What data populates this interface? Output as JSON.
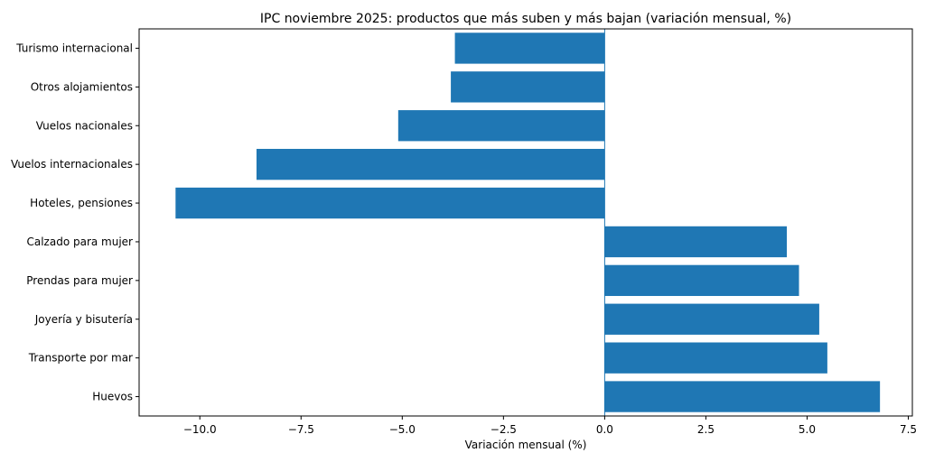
{
  "chart_data": {
    "type": "bar",
    "orientation": "horizontal",
    "title": "IPC noviembre 2025: productos que más suben y más bajan (variación mensual, %)",
    "xlabel": "Variación mensual (%)",
    "ylabel": "",
    "xlim": [
      -11.5,
      7.6
    ],
    "xticks": [
      -10.0,
      -7.5,
      -5.0,
      -2.5,
      0.0,
      2.5,
      5.0,
      7.5
    ],
    "xtick_labels": [
      "−10.0",
      "−7.5",
      "−5.0",
      "−2.5",
      "0.0",
      "2.5",
      "5.0",
      "7.5"
    ],
    "categories": [
      "Turismo internacional",
      "Otros alojamientos",
      "Vuelos nacionales",
      "Vuelos internacionales",
      "Hoteles, pensiones",
      "Calzado para mujer",
      "Prendas para mujer",
      "Joyería y bisutería",
      "Transporte por mar",
      "Huevos"
    ],
    "values": [
      -3.7,
      -3.8,
      -5.1,
      -8.6,
      -10.6,
      4.5,
      4.8,
      5.3,
      5.5,
      6.8
    ],
    "bar_color": "#1f77b4",
    "zero_line": true,
    "grid": false
  }
}
